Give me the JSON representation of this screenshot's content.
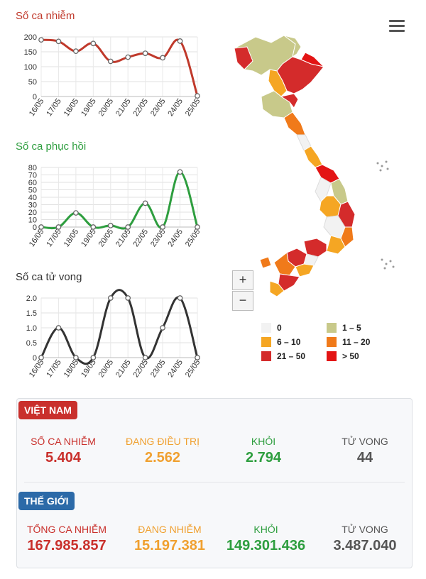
{
  "chart_data": [
    {
      "type": "line",
      "title": "Số ca nhiễm",
      "categories": [
        "16/05",
        "17/05",
        "18/05",
        "19/05",
        "20/05",
        "21/05",
        "22/05",
        "23/05",
        "24/05",
        "25/05"
      ],
      "values": [
        190,
        185,
        152,
        178,
        118,
        132,
        145,
        130,
        186,
        2
      ],
      "ylim": [
        0,
        200
      ],
      "yticks": [
        "0",
        "50",
        "100",
        "150",
        "200"
      ],
      "color": "#c0392b"
    },
    {
      "type": "line",
      "title": "Số ca phục hồi",
      "categories": [
        "16/05",
        "17/05",
        "18/05",
        "19/05",
        "20/05",
        "21/05",
        "22/05",
        "23/05",
        "24/05",
        "25/05"
      ],
      "values": [
        0,
        0,
        19,
        0,
        2,
        0,
        32,
        0,
        74,
        0
      ],
      "ylim": [
        0,
        80
      ],
      "yticks": [
        "0",
        "10",
        "20",
        "30",
        "40",
        "50",
        "60",
        "70",
        "80"
      ],
      "color": "#2e9e3f"
    },
    {
      "type": "line",
      "title": "Số ca tử vong",
      "categories": [
        "16/05",
        "17/05",
        "18/05",
        "19/05",
        "20/05",
        "21/05",
        "22/05",
        "23/05",
        "24/05",
        "25/05"
      ],
      "values": [
        0,
        1,
        0,
        0,
        2,
        2,
        0,
        1,
        2,
        0
      ],
      "ylim": [
        0,
        2
      ],
      "yticks": [
        "0",
        "0.5",
        "1.0",
        "1.5",
        "2.0"
      ],
      "color": "#333333"
    }
  ],
  "map": {
    "zoom_in": "+",
    "zoom_out": "−",
    "legend": [
      {
        "label": "0",
        "color": "#f2f2f2"
      },
      {
        "label": "1 – 5",
        "color": "#c8c98a"
      },
      {
        "label": "6 – 10",
        "color": "#f5a623"
      },
      {
        "label": "11 – 20",
        "color": "#f07a1a"
      },
      {
        "label": "21 – 50",
        "color": "#d42b2b"
      },
      {
        "label": "> 50",
        "color": "#e31414"
      }
    ]
  },
  "vietnam": {
    "badge": "VIỆT NAM",
    "badge_color": "#c9302c",
    "stats": [
      {
        "label": "SỐ CA NHIỄM",
        "value": "5.404",
        "color": "#c9302c"
      },
      {
        "label": "ĐANG ĐIỀU TRỊ",
        "value": "2.562",
        "color": "#f0a030"
      },
      {
        "label": "KHỎI",
        "value": "2.794",
        "color": "#2e9e3f"
      },
      {
        "label": "TỬ VONG",
        "value": "44",
        "color": "#555555"
      }
    ]
  },
  "world": {
    "badge": "THẾ GIỚI",
    "badge_color": "#2c6aa8",
    "stats": [
      {
        "label": "TỔNG CA NHIỄM",
        "value": "167.985.857",
        "color": "#c9302c"
      },
      {
        "label": "ĐANG NHIỄM",
        "value": "15.197.381",
        "color": "#f0a030"
      },
      {
        "label": "KHỎI",
        "value": "149.301.436",
        "color": "#2e9e3f"
      },
      {
        "label": "TỬ VONG",
        "value": "3.487.040",
        "color": "#555555"
      }
    ]
  }
}
